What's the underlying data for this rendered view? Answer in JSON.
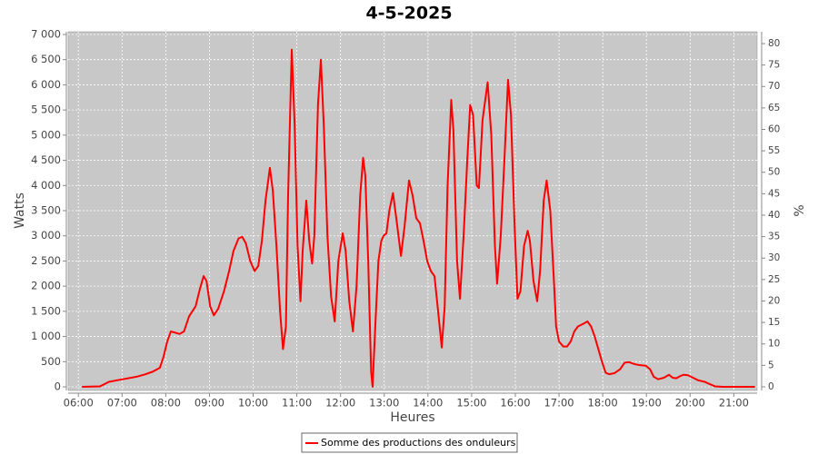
{
  "chart_data": {
    "type": "line",
    "title": "4-5-2025",
    "xlabel": "Heures",
    "ylabel": "Watts",
    "y2label": "%",
    "x": [
      "06:05",
      "06:30",
      "06:42",
      "07:01",
      "07:20",
      "07:32",
      "07:42",
      "07:52",
      "07:57",
      "08:02",
      "08:07",
      "08:12",
      "08:19",
      "08:25",
      "08:32",
      "08:41",
      "08:47",
      "08:52",
      "08:56",
      "09:01",
      "09:06",
      "09:12",
      "09:20",
      "09:27",
      "09:33",
      "09:40",
      "09:45",
      "09:50",
      "09:56",
      "10:02",
      "10:07",
      "10:12",
      "10:17",
      "10:23",
      "10:27",
      "10:32",
      "10:37",
      "10:41",
      "10:45",
      "10:48",
      "10:53",
      "10:57",
      "11:01",
      "11:05",
      "11:08",
      "11:13",
      "11:17",
      "11:21",
      "11:24",
      "11:29",
      "11:33",
      "11:37",
      "11:42",
      "11:47",
      "11:52",
      "11:57",
      "12:03",
      "12:07",
      "12:12",
      "12:17",
      "12:22",
      "12:27",
      "12:31",
      "12:34",
      "12:38",
      "12:42",
      "12:44",
      "12:48",
      "12:52",
      "12:56",
      "12:59",
      "13:03",
      "13:07",
      "13:12",
      "13:17",
      "13:23",
      "13:28",
      "13:34",
      "13:39",
      "13:44",
      "13:49",
      "13:54",
      "13:59",
      "14:04",
      "14:09",
      "14:14",
      "14:19",
      "14:23",
      "14:27",
      "14:32",
      "14:35",
      "14:40",
      "14:44",
      "14:49",
      "14:54",
      "14:58",
      "15:02",
      "15:07",
      "15:10",
      "15:15",
      "15:22",
      "15:27",
      "15:32",
      "15:35",
      "15:40",
      "15:45",
      "15:50",
      "15:54",
      "15:59",
      "16:03",
      "16:07",
      "16:12",
      "16:17",
      "16:20",
      "16:25",
      "16:30",
      "16:34",
      "16:39",
      "16:43",
      "16:48",
      "16:53",
      "16:56",
      "17:00",
      "17:06",
      "17:11",
      "17:16",
      "17:21",
      "17:26",
      "17:33",
      "17:39",
      "17:44",
      "17:49",
      "17:54",
      "17:59",
      "18:04",
      "18:09",
      "18:16",
      "18:24",
      "18:30",
      "18:36",
      "18:44",
      "18:51",
      "18:59",
      "19:05",
      "19:10",
      "19:16",
      "19:24",
      "19:31",
      "19:36",
      "19:41",
      "19:46",
      "19:51",
      "19:57",
      "20:04",
      "20:11",
      "20:20",
      "20:26",
      "20:34",
      "20:45",
      "21:29"
    ],
    "series": [
      {
        "name": "Somme des productions des onduleurs",
        "color": "#ff0000",
        "values": [
          0,
          10,
          100,
          150,
          200,
          250,
          300,
          380,
          600,
          900,
          1100,
          1080,
          1050,
          1100,
          1400,
          1600,
          1950,
          2200,
          2100,
          1600,
          1420,
          1550,
          1900,
          2300,
          2700,
          2950,
          2980,
          2850,
          2500,
          2300,
          2400,
          2900,
          3700,
          4350,
          3900,
          2800,
          1500,
          750,
          1200,
          3800,
          6700,
          5200,
          2800,
          1700,
          2700,
          3700,
          2900,
          2450,
          3000,
          5600,
          6500,
          5200,
          3000,
          1800,
          1300,
          2500,
          3050,
          2700,
          1700,
          1100,
          2000,
          3800,
          4550,
          4200,
          2500,
          300,
          0,
          1300,
          2500,
          2900,
          3000,
          3050,
          3500,
          3850,
          3300,
          2600,
          3200,
          4100,
          3800,
          3350,
          3250,
          2900,
          2500,
          2300,
          2200,
          1500,
          780,
          1600,
          4000,
          5700,
          5100,
          2500,
          1750,
          3000,
          4500,
          5600,
          5400,
          4000,
          3950,
          5300,
          6050,
          5000,
          2800,
          2050,
          3000,
          4500,
          6100,
          5400,
          3200,
          1750,
          1900,
          2800,
          3100,
          2900,
          2100,
          1700,
          2300,
          3700,
          4100,
          3500,
          2100,
          1200,
          900,
          800,
          800,
          900,
          1100,
          1200,
          1250,
          1300,
          1200,
          1000,
          750,
          500,
          280,
          250,
          270,
          350,
          480,
          490,
          450,
          430,
          420,
          350,
          200,
          150,
          180,
          240,
          180,
          170,
          210,
          240,
          230,
          180,
          130,
          100,
          60,
          10,
          0,
          0
        ]
      }
    ],
    "xlim": [
      "05:46",
      "21:32"
    ],
    "xticks": [
      "06:00",
      "07:00",
      "08:00",
      "09:00",
      "10:00",
      "11:00",
      "12:00",
      "13:00",
      "14:00",
      "15:00",
      "16:00",
      "17:00",
      "18:00",
      "19:00",
      "20:00",
      "21:00"
    ],
    "ylim": [
      -72,
      7054
    ],
    "yticks": [
      0,
      500,
      {
        "value": 1000,
        "label": "1 000"
      },
      {
        "value": 1500,
        "label": "1 500"
      },
      {
        "value": 2000,
        "label": "2 000"
      },
      {
        "value": 2500,
        "label": "2 500"
      },
      {
        "value": 3000,
        "label": "3 000"
      },
      {
        "value": 3500,
        "label": "3 500"
      },
      {
        "value": 4000,
        "label": "4 000"
      },
      {
        "value": 4500,
        "label": "4 500"
      },
      {
        "value": 5000,
        "label": "5 000"
      },
      {
        "value": 5500,
        "label": "5 500"
      },
      {
        "value": 6000,
        "label": "6 000"
      },
      {
        "value": 6500,
        "label": "6 500"
      },
      {
        "value": 7000,
        "label": "7 000"
      }
    ],
    "y2lim": [
      -0.85,
      82.75
    ],
    "y2ticks": [
      0,
      5,
      10,
      15,
      20,
      25,
      30,
      35,
      40,
      45,
      50,
      55,
      60,
      65,
      70,
      75,
      80
    ],
    "grid": true,
    "legend": "bottom"
  }
}
